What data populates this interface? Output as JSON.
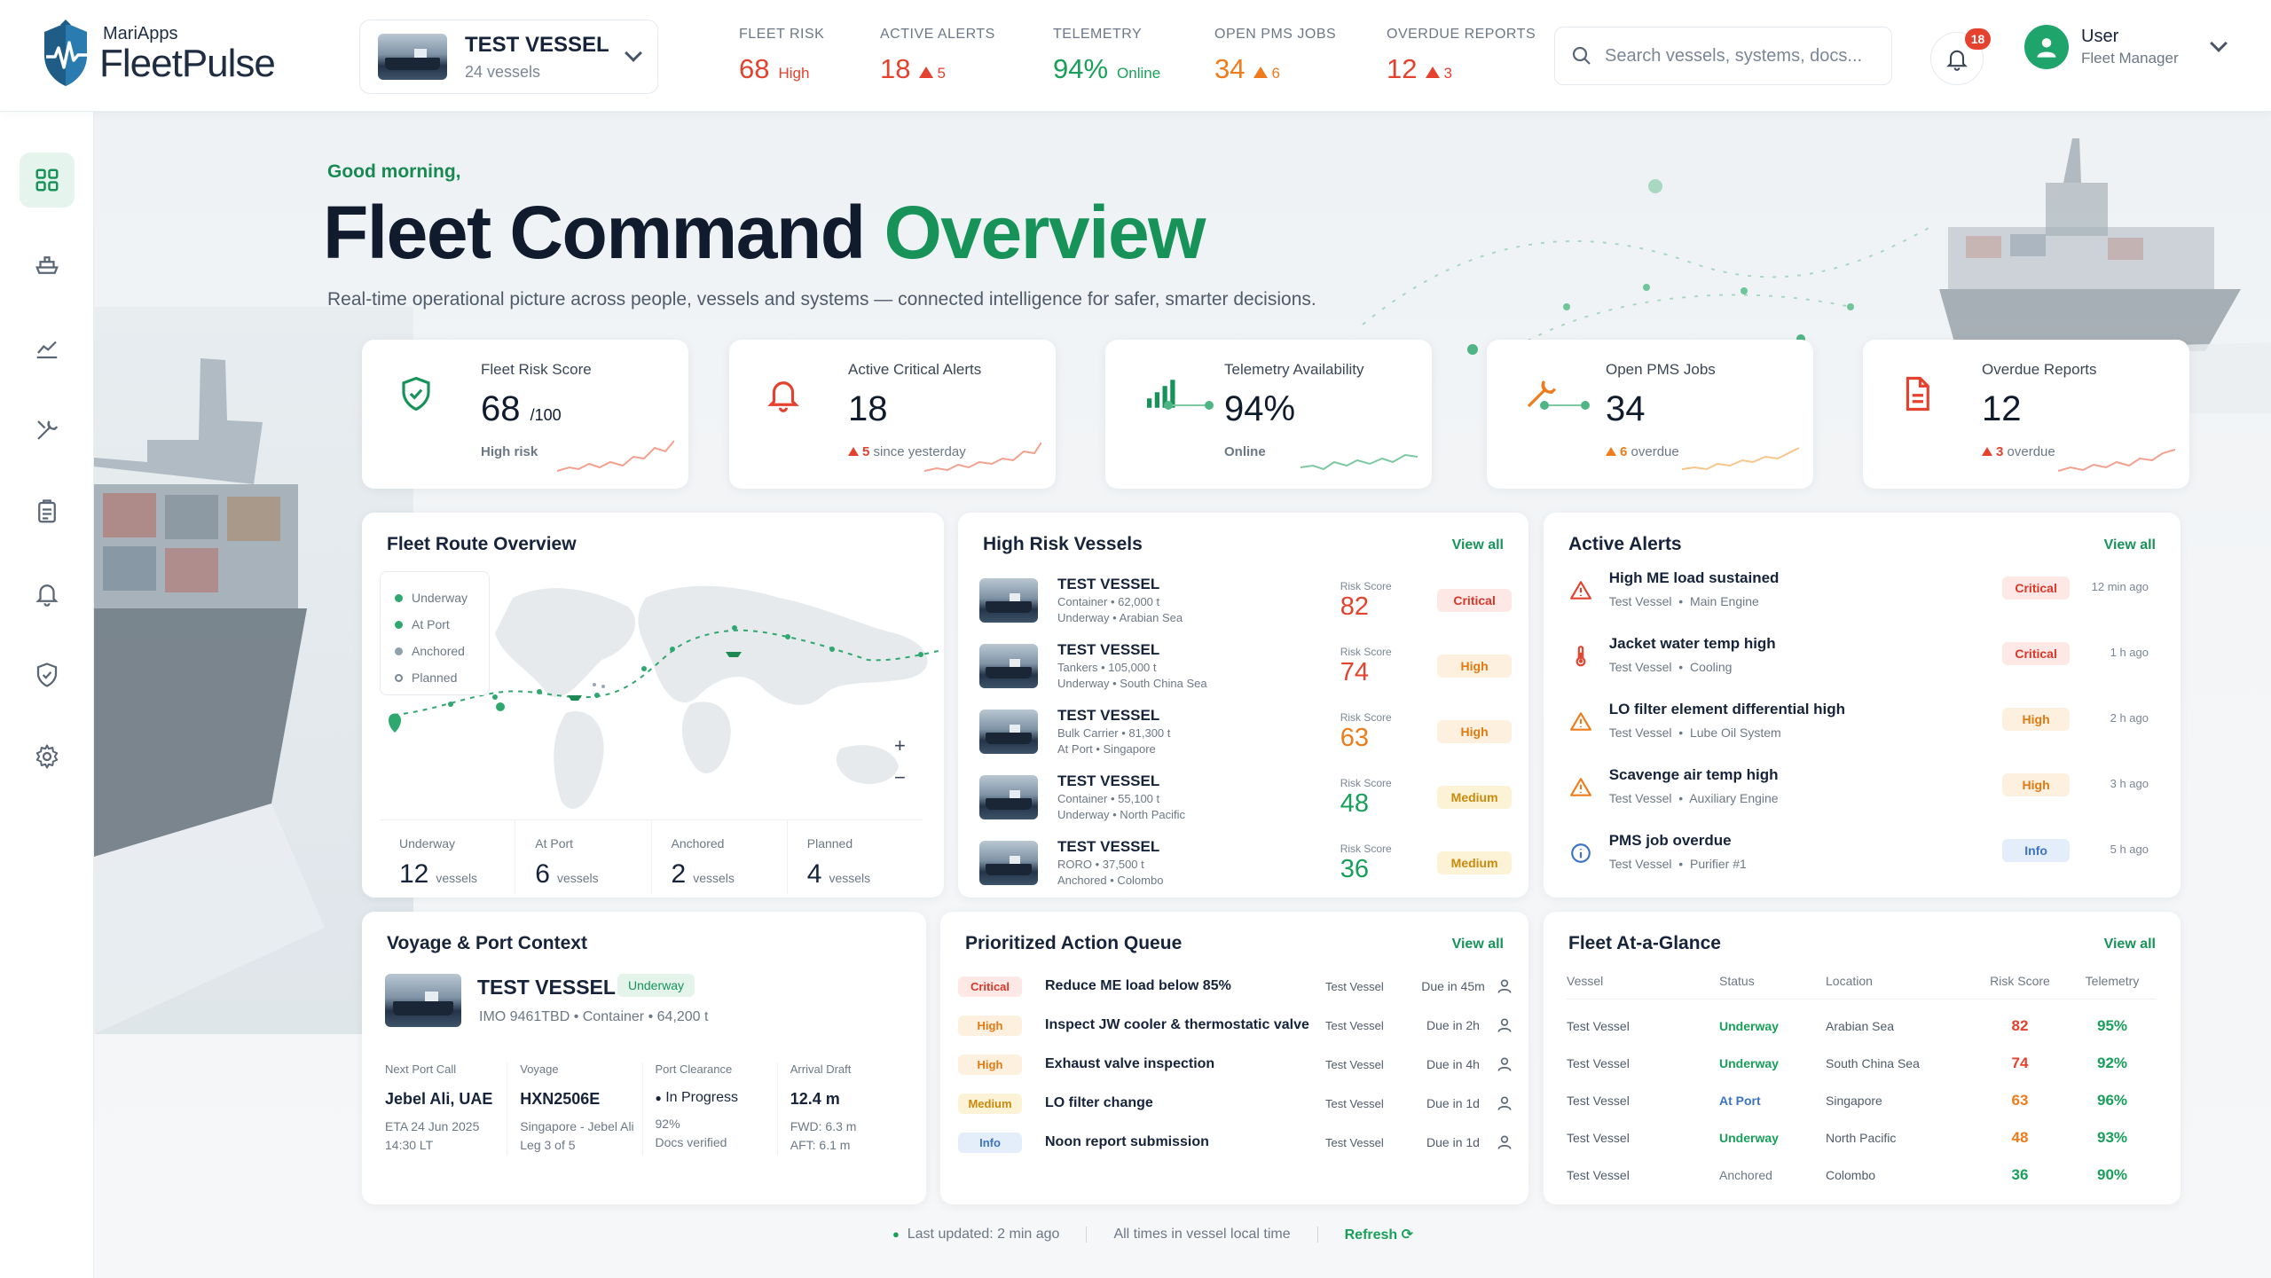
{
  "brand": {
    "small": "MariApps",
    "name": "FleetPulse"
  },
  "vessel_selector": {
    "name": "TEST VESSEL",
    "count": "24 vessels"
  },
  "top_kpis": [
    {
      "label": "FLEET RISK",
      "value": "68",
      "sub": "High",
      "color": "#e4412e"
    },
    {
      "label": "ACTIVE ALERTS",
      "value": "18",
      "sub": "5",
      "color": "#e4412e"
    },
    {
      "label": "TELEMETRY",
      "value": "94%",
      "sub": "Online",
      "color": "#18a05a"
    },
    {
      "label": "OPEN PMS JOBS",
      "value": "34",
      "sub": "6",
      "color": "#ef7b1a"
    },
    {
      "label": "OVERDUE REPORTS",
      "value": "12",
      "sub": "3",
      "color": "#e4412e"
    }
  ],
  "search": {
    "placeholder": "Search vessels, systems, docs..."
  },
  "notifications": {
    "count": "18"
  },
  "user": {
    "name": "User",
    "role": "Fleet Manager"
  },
  "sidebar_icons": [
    "dashboard-icon",
    "vessel-icon",
    "analytics-icon",
    "maintenance-icon",
    "reports-icon",
    "alerts-icon",
    "safety-icon",
    "settings-icon"
  ],
  "hero": {
    "greeting": "Good morning,",
    "title_main": "Fleet Command",
    "title_highlight": "Overview",
    "subtitle": "Real-time operational picture across people, vessels and systems — connected intelligence for safer, smarter decisions."
  },
  "kpi_cards": [
    {
      "label": "Fleet Risk Score",
      "value": "68",
      "unit": "/100",
      "foot": "High risk",
      "icon": "shield-check-icon",
      "accent": "#e4412e"
    },
    {
      "label": "Active Critical Alerts",
      "value": "18",
      "unit": "",
      "foot_num": "5",
      "foot": "since yesterday",
      "icon": "bell-icon",
      "accent": "#e4412e"
    },
    {
      "label": "Telemetry Availability",
      "value": "94%",
      "unit": "",
      "foot": "Online",
      "icon": "signal-bars-icon",
      "accent": "#18a05a"
    },
    {
      "label": "Open PMS Jobs",
      "value": "34",
      "unit": "",
      "foot_num": "6",
      "foot": "overdue",
      "icon": "wrench-icon",
      "accent": "#ef7b1a"
    },
    {
      "label": "Overdue Reports",
      "value": "12",
      "unit": "",
      "foot_num": "3",
      "foot": "overdue",
      "icon": "document-icon",
      "accent": "#e4412e"
    }
  ],
  "route_overview": {
    "title": "Fleet Route Overview",
    "legend": [
      "Underway",
      "At Port",
      "Anchored",
      "Planned"
    ],
    "stats": [
      {
        "label": "Underway",
        "value": "12",
        "unit": "vessels"
      },
      {
        "label": "At Port",
        "value": "6",
        "unit": "vessels"
      },
      {
        "label": "Anchored",
        "value": "2",
        "unit": "vessels"
      },
      {
        "label": "Planned",
        "value": "4",
        "unit": "vessels"
      }
    ]
  },
  "high_risk": {
    "title": "High Risk Vessels",
    "view_all": "View all",
    "score_label": "Risk Score",
    "rows": [
      {
        "name": "TEST VESSEL",
        "line1": "Container • 62,000 t",
        "line2": "Underway • Arabian Sea",
        "score": "82",
        "level": "Critical"
      },
      {
        "name": "TEST VESSEL",
        "line1": "Tankers • 105,000 t",
        "line2": "Underway • South China Sea",
        "score": "74",
        "level": "High"
      },
      {
        "name": "TEST VESSEL",
        "line1": "Bulk Carrier • 81,300 t",
        "line2": "At Port • Singapore",
        "score": "63",
        "level": "High"
      },
      {
        "name": "TEST VESSEL",
        "line1": "Container • 55,100 t",
        "line2": "Underway • North Pacific",
        "score": "48",
        "level": "Medium"
      },
      {
        "name": "TEST VESSEL",
        "line1": "RORO • 37,500 t",
        "line2": "Anchored • Colombo",
        "score": "36",
        "level": "Medium"
      }
    ]
  },
  "alerts": {
    "title": "Active Alerts",
    "view_all": "View all",
    "rows": [
      {
        "title": "High ME load sustained",
        "vessel": "Test Vessel",
        "system": "Main Engine",
        "level": "Critical",
        "time": "12 min ago",
        "icon": "warning-icon"
      },
      {
        "title": "Jacket water temp high",
        "vessel": "Test Vessel",
        "system": "Cooling",
        "level": "Critical",
        "time": "1 h ago",
        "icon": "thermometer-icon"
      },
      {
        "title": "LO filter element differential high",
        "vessel": "Test Vessel",
        "system": "Lube Oil System",
        "level": "High",
        "time": "2 h ago",
        "icon": "warning-icon"
      },
      {
        "title": "Scavenge air temp high",
        "vessel": "Test Vessel",
        "system": "Auxiliary Engine",
        "level": "High",
        "time": "3 h ago",
        "icon": "warning-icon"
      },
      {
        "title": "PMS job overdue",
        "vessel": "Test Vessel",
        "system": "Purifier #1",
        "level": "Info",
        "time": "5 h ago",
        "icon": "info-icon"
      }
    ]
  },
  "voyage": {
    "title": "Voyage & Port Context",
    "vessel": "TEST VESSEL",
    "status": "Underway",
    "sub": "IMO 9461TBD  •  Container  •  64,200 t",
    "cols": [
      {
        "label": "Next Port Call",
        "value": "Jebel Ali, UAE",
        "s1": "ETA 24 Jun 2025",
        "s2": "14:30 LT"
      },
      {
        "label": "Voyage",
        "value": "HXN2506E",
        "s1": "Singapore - Jebel Ali",
        "s2": "Leg 3 of 5"
      },
      {
        "label": "Port Clearance",
        "value": "In Progress",
        "s1": "92%",
        "s2": "Docs verified"
      },
      {
        "label": "Arrival Draft",
        "value": "12.4 m",
        "s1": "FWD: 6.3 m",
        "s2": "AFT: 6.1 m"
      }
    ]
  },
  "queue": {
    "title": "Prioritized Action Queue",
    "view_all": "View all",
    "rows": [
      {
        "level": "Critical",
        "task": "Reduce ME load below 85%",
        "vessel": "Test Vessel",
        "due": "Due in 45m"
      },
      {
        "level": "High",
        "task": "Inspect JW cooler & thermostatic valve",
        "vessel": "Test Vessel",
        "due": "Due in 2h"
      },
      {
        "level": "High",
        "task": "Exhaust valve inspection",
        "vessel": "Test Vessel",
        "due": "Due in 4h"
      },
      {
        "level": "Medium",
        "task": "LO filter change",
        "vessel": "Test Vessel",
        "due": "Due in 1d"
      },
      {
        "level": "Info",
        "task": "Noon report submission",
        "vessel": "Test Vessel",
        "due": "Due in 1d"
      }
    ]
  },
  "glance": {
    "title": "Fleet At-a-Glance",
    "view_all": "View all",
    "headers": [
      "Vessel",
      "Status",
      "Location",
      "Risk Score",
      "Telemetry"
    ],
    "rows": [
      {
        "vessel": "Test Vessel",
        "status": "Underway",
        "location": "Arabian Sea",
        "risk": "82",
        "telemetry": "95%"
      },
      {
        "vessel": "Test Vessel",
        "status": "Underway",
        "location": "South China Sea",
        "risk": "74",
        "telemetry": "92%"
      },
      {
        "vessel": "Test Vessel",
        "status": "At Port",
        "location": "Singapore",
        "risk": "63",
        "telemetry": "96%"
      },
      {
        "vessel": "Test Vessel",
        "status": "Underway",
        "location": "North Pacific",
        "risk": "48",
        "telemetry": "93%"
      },
      {
        "vessel": "Test Vessel",
        "status": "Anchored",
        "location": "Colombo",
        "risk": "36",
        "telemetry": "90%"
      }
    ]
  },
  "footer": {
    "updated": "Last updated: 2 min ago",
    "tz": "All times in vessel local time",
    "refresh": "Refresh"
  },
  "colors": {
    "accent": "#17935a",
    "critical": "#e4412e",
    "high": "#ef7b1a",
    "medium": "#d9a413",
    "info": "#3c73c4"
  }
}
